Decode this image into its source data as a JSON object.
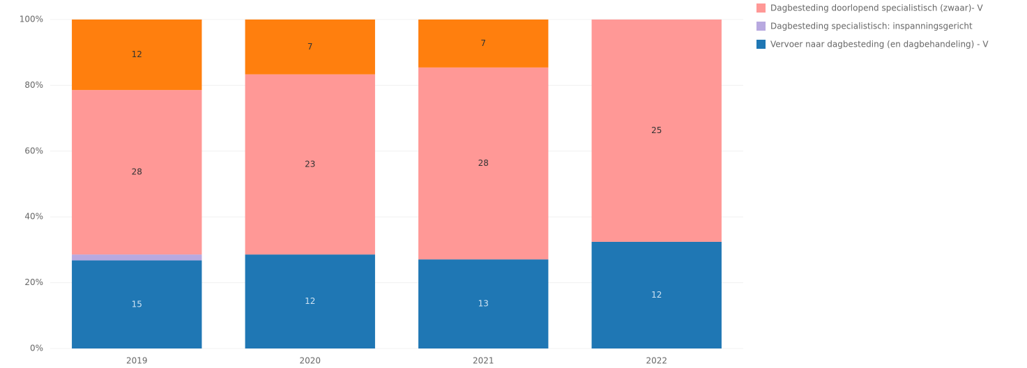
{
  "chart_data": {
    "type": "bar",
    "stack": "percent",
    "categories": [
      "2019",
      "2020",
      "2021",
      "2022"
    ],
    "series": [
      {
        "name": "Vervoer naar dagbesteding (en dagbehandeling) - V",
        "color": "#1f77b4",
        "values": [
          15,
          12,
          13,
          12
        ]
      },
      {
        "name": "Dagbesteding specialistisch: inspanningsgericht",
        "color": "#b8a9e0",
        "values": [
          1,
          null,
          null,
          null
        ]
      },
      {
        "name": "Dagbesteding doorlopend specialistisch (zwaar)- V",
        "color": "#ff9896",
        "values": [
          28,
          23,
          28,
          25
        ]
      },
      {
        "color": "#ff7f0e",
        "values": [
          12,
          7,
          7,
          null
        ]
      }
    ],
    "labeled_series": [
      0,
      2,
      3
    ],
    "ylim": [
      0,
      100
    ],
    "yticks": [
      {
        "value": 0,
        "label": "0%"
      },
      {
        "value": 20,
        "label": "20%"
      },
      {
        "value": 40,
        "label": "40%"
      },
      {
        "value": 60,
        "label": "60%"
      },
      {
        "value": 80,
        "label": "80%"
      },
      {
        "value": 100,
        "label": "100%"
      }
    ],
    "grid": true
  }
}
